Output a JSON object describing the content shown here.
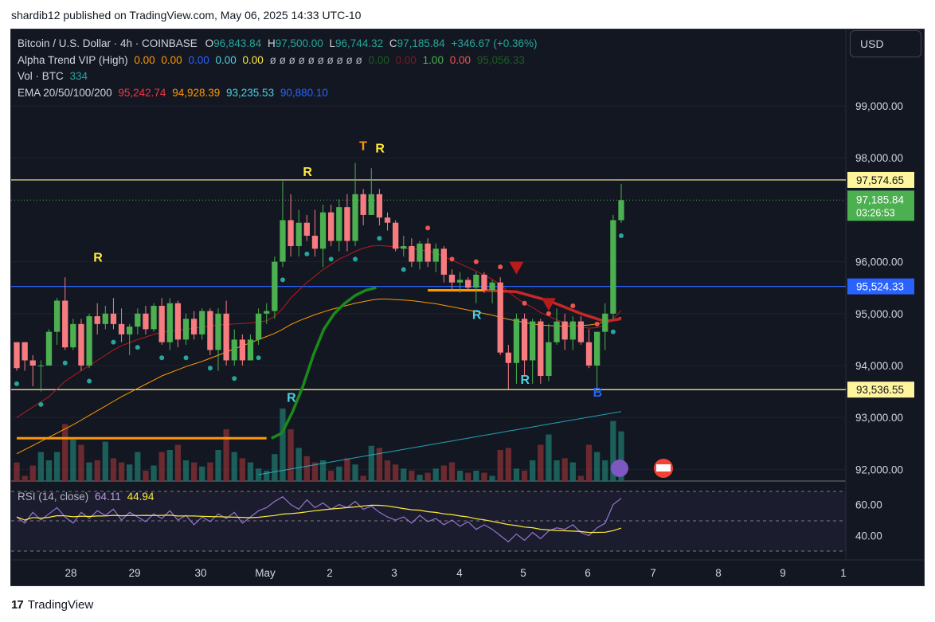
{
  "publisher_line": "shardib12 published on TradingView.com, May 06, 2025 14:33 UTC-10",
  "footer_brand": "TradingView",
  "currency_button": "USD",
  "legend": {
    "symbol": "Bitcoin / U.S. Dollar · 4h · COINBASE",
    "ohlc": {
      "o_label": "O",
      "o": "96,843.84",
      "h_label": "H",
      "h": "97,500.00",
      "l_label": "L",
      "l": "96,744.32",
      "c_label": "C",
      "c": "97,185.84",
      "chg": "+346.67 (+0.36%)"
    },
    "alpha_trend": {
      "name": "Alpha Trend VIP (High)",
      "values": [
        "0.00",
        "0.00",
        "0.00",
        "0.00",
        "0.00",
        "ø ø ø ø ø ø ø ø ø ø",
        "0.00",
        "0.00",
        "1.00",
        "0.00",
        "95,056.33"
      ]
    },
    "vol": {
      "name": "Vol · BTC",
      "value": "334"
    },
    "ema": {
      "name": "EMA 20/50/100/200",
      "values": [
        "95,242.74",
        "94,928.39",
        "93,235.53",
        "90,880.10"
      ]
    }
  },
  "rsi": {
    "name": "RSI (14, close)",
    "values": [
      "64.11",
      "44.94"
    ]
  },
  "colors": {
    "up": "#26a69a",
    "down": "#ef5350",
    "candle_up": "#4caf50",
    "candle_down": "#f77c80",
    "bg": "#131722"
  },
  "chart_data": {
    "type": "candlestick",
    "timeframe": "4h",
    "price_axis_labels": [
      "99,000.00",
      "98,000.00",
      "96,000.00",
      "95,000.00",
      "94,000.00",
      "93,000.00",
      "92,000.00"
    ],
    "price_axis_ticks": [
      99000,
      98000,
      96000,
      95000,
      94000,
      93000,
      92000
    ],
    "time_axis_labels": [
      "28",
      "29",
      "30",
      "May",
      "2",
      "3",
      "4",
      "5",
      "6",
      "7",
      "8",
      "9",
      "1"
    ],
    "horizontal_levels": [
      {
        "label": "97,574.65",
        "value": 97574.65,
        "color": "#fff59d"
      },
      {
        "label": "95,524.33",
        "value": 95524.33,
        "color": "#2962ff"
      },
      {
        "label": "93,536.55",
        "value": 93536.55,
        "color": "#fff59d"
      }
    ],
    "last_price": {
      "label": "97,185.84",
      "value": 97185.84,
      "countdown": "03:26:53"
    },
    "ylim": [
      91800,
      99900
    ],
    "candles": [
      [
        94450,
        94450,
        93900,
        93950
      ],
      [
        94450,
        94450,
        93900,
        94100
      ],
      [
        94100,
        94200,
        93600,
        94000
      ],
      [
        94000,
        94100,
        93500,
        94000
      ],
      [
        94000,
        94700,
        94000,
        94650
      ],
      [
        94650,
        95300,
        94400,
        95250
      ],
      [
        95250,
        95700,
        94300,
        94350
      ],
      [
        94350,
        94900,
        94300,
        94800
      ],
      [
        94800,
        94900,
        93900,
        94000
      ],
      [
        94000,
        95000,
        93950,
        94950
      ],
      [
        94950,
        95200,
        94600,
        94800
      ],
      [
        94800,
        95150,
        94700,
        95000
      ],
      [
        95000,
        95300,
        94700,
        94800
      ],
      [
        94800,
        95100,
        94450,
        94600
      ],
      [
        94600,
        94800,
        94200,
        94750
      ],
      [
        94750,
        95100,
        94600,
        95000
      ],
      [
        95000,
        95150,
        94600,
        94700
      ],
      [
        94700,
        95200,
        94650,
        95150
      ],
      [
        95150,
        95300,
        94400,
        94450
      ],
      [
        94450,
        95300,
        94300,
        95200
      ],
      [
        95200,
        95250,
        94350,
        94500
      ],
      [
        94500,
        95000,
        94400,
        94900
      ],
      [
        94900,
        95050,
        94500,
        94600
      ],
      [
        94600,
        95100,
        94500,
        95050
      ],
      [
        95050,
        95100,
        94200,
        94300
      ],
      [
        94300,
        95100,
        93900,
        95000
      ],
      [
        95000,
        95250,
        94000,
        94100
      ],
      [
        94100,
        94700,
        94000,
        94500
      ],
      [
        94500,
        94600,
        94000,
        94100
      ],
      [
        94100,
        94600,
        94100,
        94500
      ],
      [
        94500,
        95100,
        94400,
        95000
      ],
      [
        95000,
        95200,
        94800,
        95050
      ],
      [
        95050,
        96100,
        94900,
        96000
      ],
      [
        96000,
        97550,
        95900,
        96800
      ],
      [
        96800,
        97300,
        96100,
        96300
      ],
      [
        96300,
        97000,
        96100,
        96750
      ],
      [
        96750,
        96900,
        96400,
        96500
      ],
      [
        96500,
        97000,
        96100,
        96250
      ],
      [
        96250,
        97100,
        95900,
        96950
      ],
      [
        96950,
        97100,
        96300,
        96400
      ],
      [
        96400,
        97200,
        96200,
        97050
      ],
      [
        97050,
        97300,
        96200,
        96400
      ],
      [
        96400,
        97900,
        96300,
        97300
      ],
      [
        97300,
        97400,
        96700,
        96900
      ],
      [
        96900,
        97800,
        96900,
        97300
      ],
      [
        97300,
        97400,
        96700,
        96850
      ],
      [
        96850,
        96950,
        96600,
        96750
      ],
      [
        96750,
        96800,
        96200,
        96250
      ],
      [
        96250,
        96500,
        96100,
        96300
      ],
      [
        96300,
        96450,
        95900,
        96000
      ],
      [
        96000,
        96400,
        95850,
        96350
      ],
      [
        96350,
        96450,
        95900,
        96000
      ],
      [
        96000,
        96350,
        95800,
        96250
      ],
      [
        96250,
        96300,
        95600,
        95750
      ],
      [
        95750,
        95850,
        95450,
        95600
      ],
      [
        95600,
        95800,
        95400,
        95650
      ],
      [
        95650,
        95700,
        95450,
        95500
      ],
      [
        95500,
        95800,
        95200,
        95750
      ],
      [
        95750,
        95800,
        95400,
        95450
      ],
      [
        95450,
        95650,
        95200,
        95600
      ],
      [
        95600,
        95700,
        94200,
        94250
      ],
      [
        94250,
        94400,
        93550,
        94050
      ],
      [
        94050,
        95000,
        93650,
        94900
      ],
      [
        94900,
        95000,
        93800,
        94100
      ],
      [
        94100,
        94900,
        93650,
        94850
      ],
      [
        94850,
        94900,
        93650,
        93800
      ],
      [
        93800,
        94800,
        93700,
        94450
      ],
      [
        94450,
        95100,
        94400,
        94850
      ],
      [
        94850,
        95000,
        94300,
        94500
      ],
      [
        94500,
        94950,
        94300,
        94850
      ],
      [
        94850,
        94950,
        94400,
        94450
      ],
      [
        94450,
        94700,
        93950,
        94000
      ],
      [
        94000,
        94600,
        93500,
        94650
      ],
      [
        94650,
        95200,
        94300,
        95000
      ],
      [
        95000,
        96900,
        94900,
        96800
      ],
      [
        96800,
        97500,
        96750,
        97186
      ]
    ],
    "volume_pct": [
      18,
      5,
      15,
      28,
      20,
      28,
      55,
      40,
      35,
      18,
      20,
      38,
      22,
      18,
      16,
      28,
      10,
      15,
      28,
      30,
      35,
      20,
      18,
      14,
      18,
      30,
      50,
      28,
      22,
      18,
      12,
      10,
      26,
      70,
      50,
      32,
      24,
      18,
      20,
      10,
      14,
      22,
      16,
      5,
      34,
      32,
      20,
      16,
      12,
      10,
      6,
      8,
      12,
      15,
      18,
      10,
      8,
      10,
      8,
      5,
      30,
      32,
      12,
      10,
      20,
      35,
      45,
      20,
      22,
      18,
      5,
      35,
      28,
      20,
      58,
      48
    ],
    "ema_values": {
      "ema20": [
        93000,
        93100,
        93200,
        93300,
        93400,
        93550,
        93700,
        93800,
        93900,
        94000,
        94100,
        94200,
        94300,
        94380,
        94440,
        94500,
        94550,
        94600,
        94640,
        94660,
        94680,
        94700,
        94720,
        94740,
        94760,
        94780,
        94790,
        94800,
        94810,
        94820,
        94840,
        94860,
        94950,
        95100,
        95300,
        95450,
        95600,
        95720,
        95850,
        95950,
        96050,
        96120,
        96200,
        96260,
        96300,
        96310,
        96300,
        96290,
        96270,
        96250,
        96230,
        96200,
        96170,
        96100,
        96030,
        95960,
        95890,
        95820,
        95740,
        95660,
        95560,
        95420,
        95300,
        95200,
        95120,
        95020,
        94950,
        94880,
        94820,
        94780,
        94750,
        94720,
        94730,
        94780,
        94900,
        95060
      ],
      "ema50": [
        92300,
        92380,
        92460,
        92540,
        92620,
        92700,
        92780,
        92860,
        92950,
        93040,
        93130,
        93220,
        93310,
        93400,
        93480,
        93560,
        93640,
        93720,
        93800,
        93860,
        93920,
        93980,
        94030,
        94080,
        94140,
        94200,
        94260,
        94320,
        94380,
        94440,
        94500,
        94560,
        94620,
        94700,
        94790,
        94860,
        94920,
        94980,
        95030,
        95080,
        95120,
        95160,
        95200,
        95230,
        95260,
        95280,
        95280,
        95270,
        95260,
        95250,
        95230,
        95210,
        95190,
        95160,
        95130,
        95100,
        95070,
        95040,
        95000,
        94970,
        94930,
        94890,
        94860,
        94830,
        94800,
        94780,
        94770,
        94760,
        94760,
        94760,
        94770,
        94780,
        94800,
        94840,
        94880,
        94930
      ]
    },
    "rsi_series": [
      52,
      48,
      55,
      50,
      54,
      58,
      52,
      48,
      55,
      51,
      56,
      53,
      57,
      50,
      55,
      52,
      49,
      54,
      51,
      56,
      50,
      53,
      47,
      52,
      49,
      54,
      51,
      55,
      48,
      52,
      56,
      58,
      62,
      65,
      60,
      57,
      63,
      58,
      61,
      57,
      60,
      58,
      62,
      57,
      59,
      55,
      52,
      50,
      52,
      48,
      53,
      49,
      51,
      47,
      50,
      46,
      49,
      44,
      47,
      44,
      40,
      36,
      41,
      37,
      42,
      38,
      43,
      45,
      44,
      47,
      42,
      40,
      45,
      48,
      60,
      64
    ]
  }
}
